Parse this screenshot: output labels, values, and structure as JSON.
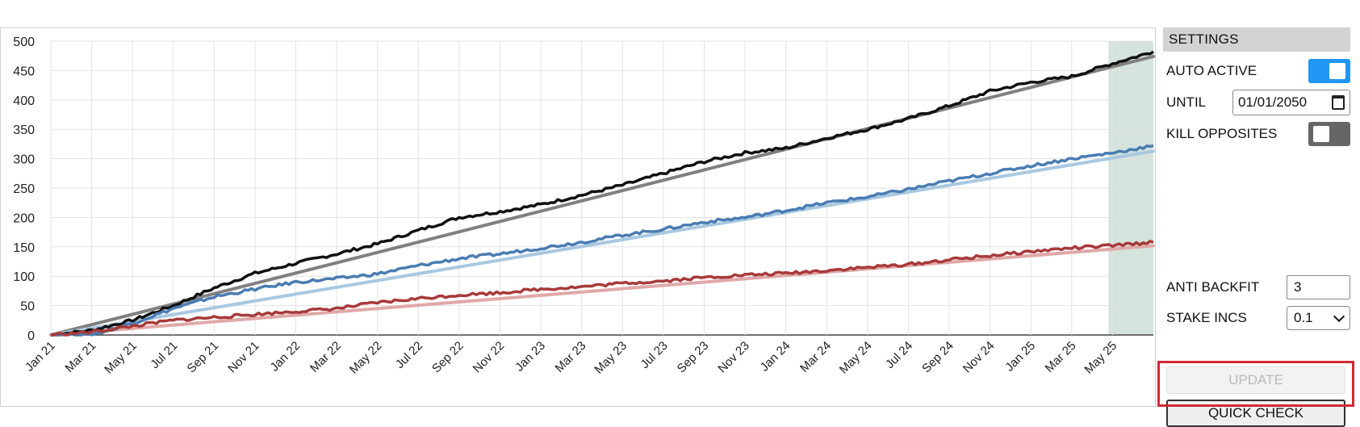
{
  "chart_data": {
    "type": "line",
    "ylim": [
      0,
      500
    ],
    "yticks": [
      "0",
      "50",
      "100",
      "150",
      "200",
      "250",
      "300",
      "350",
      "400",
      "450",
      "500"
    ],
    "xticks": [
      "Jan 21",
      "Mar 21",
      "May 21",
      "Jul 21",
      "Sep 21",
      "Nov 21",
      "Jan 22",
      "Mar 22",
      "May 22",
      "Jul 22",
      "Sep 22",
      "Nov 22",
      "Jan 23",
      "Mar 23",
      "May 23",
      "Jul 23",
      "Sep 23",
      "Nov 23",
      "Jan 24",
      "Mar 24",
      "May 24",
      "Jul 24",
      "Sep 24",
      "Nov 24",
      "Jan 25",
      "Mar 25",
      "May 25"
    ],
    "xlim_months": [
      0,
      54
    ],
    "highlight_range_months": [
      51.8,
      54
    ],
    "highlight_color": "#d4e4dc",
    "series": [
      {
        "color": "#111111",
        "trend_color": "#808080",
        "x": [
          0,
          2,
          4,
          6,
          8,
          10,
          12,
          14,
          16,
          18,
          20,
          22,
          24,
          26,
          28,
          30,
          32,
          34,
          36,
          38,
          40,
          42,
          44,
          46,
          48,
          50,
          52,
          54
        ],
        "values": [
          0,
          8,
          25,
          50,
          80,
          105,
          122,
          138,
          155,
          178,
          200,
          210,
          222,
          238,
          255,
          275,
          295,
          310,
          318,
          335,
          350,
          368,
          390,
          415,
          430,
          440,
          462,
          482
        ]
      },
      {
        "color": "#4a7cb3",
        "trend_color": "#a8c8e0",
        "x": [
          0,
          2,
          4,
          6,
          8,
          10,
          12,
          14,
          16,
          18,
          20,
          22,
          24,
          26,
          28,
          30,
          32,
          34,
          36,
          38,
          40,
          42,
          44,
          46,
          48,
          50,
          52,
          54
        ],
        "values": [
          0,
          0,
          20,
          45,
          65,
          78,
          90,
          96,
          104,
          118,
          130,
          138,
          148,
          158,
          170,
          180,
          192,
          200,
          212,
          225,
          235,
          248,
          262,
          275,
          288,
          300,
          310,
          322
        ]
      },
      {
        "color": "#a83a3a",
        "trend_color": "#e0a8a8",
        "x": [
          0,
          2,
          4,
          6,
          8,
          10,
          12,
          14,
          16,
          18,
          20,
          22,
          24,
          26,
          28,
          30,
          32,
          34,
          36,
          38,
          40,
          42,
          44,
          46,
          48,
          50,
          52,
          54
        ],
        "values": [
          0,
          5,
          15,
          25,
          30,
          35,
          40,
          45,
          55,
          62,
          68,
          72,
          78,
          82,
          88,
          92,
          98,
          102,
          105,
          110,
          115,
          120,
          128,
          135,
          142,
          148,
          152,
          158
        ]
      }
    ]
  },
  "settings": {
    "header": "SETTINGS",
    "auto_active_label": "AUTO ACTIVE",
    "auto_active_on": true,
    "until_label": "UNTIL",
    "until_value": "01/01/2050",
    "kill_opposites_label": "KILL OPPOSITES",
    "kill_opposites_on": false,
    "anti_backfit_label": "ANTI BACKFIT",
    "anti_backfit_value": "3",
    "stake_incs_label": "STAKE INCS",
    "stake_incs_value": "0.1",
    "update_label": "UPDATE",
    "quick_check_label": "QUICK CHECK",
    "highlight_color": "#d12a35"
  }
}
